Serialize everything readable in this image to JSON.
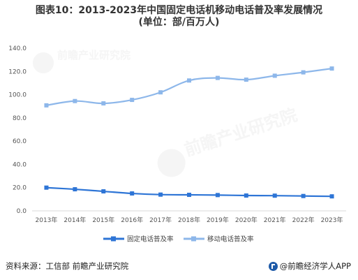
{
  "title_line1": "图表10：2013-2023年中国固定电话机移动电话普及率发展情况",
  "title_line2": "(单位：部/百万人)",
  "colors": {
    "fixed": "#2e75d6",
    "mobile": "#8db7ea",
    "axis": "#d9d9d9"
  },
  "chart_data": {
    "type": "line",
    "categories": [
      "2013年",
      "2014年",
      "2015年",
      "2016年",
      "2017年",
      "2018年",
      "2019年",
      "2020年",
      "2021年",
      "2022年",
      "2023年"
    ],
    "series": [
      {
        "name": "固定电话普及率",
        "values": [
          20.0,
          18.6,
          16.8,
          15.0,
          14.0,
          13.8,
          13.6,
          13.2,
          13.1,
          12.8,
          12.5
        ]
      },
      {
        "name": "移动电话普及率",
        "values": [
          90.8,
          94.5,
          92.5,
          95.5,
          102.0,
          112.2,
          114.4,
          112.9,
          116.3,
          119.2,
          122.5
        ]
      }
    ],
    "yticks": [
      "0.0",
      "20.0",
      "40.0",
      "60.0",
      "80.0",
      "100.0",
      "120.0",
      "140.0"
    ],
    "ylim": [
      0,
      140
    ],
    "grid": false,
    "legend": "bottom"
  },
  "footer": {
    "source": "资料来源：工信部 前瞻产业研究院",
    "brand": "@前瞻经济学人APP"
  },
  "watermark": {
    "text": "前瞻产业研究院"
  }
}
